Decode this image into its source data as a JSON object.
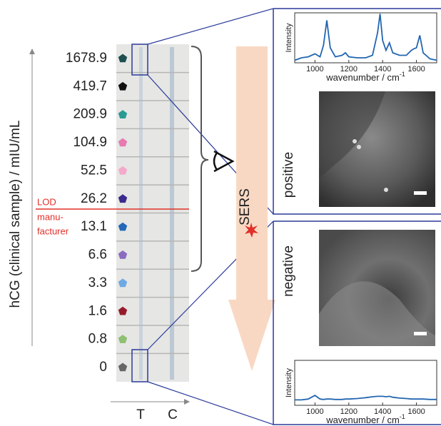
{
  "y_axis_label": "hCG (clinical sample) / mIU/mL",
  "rows": [
    {
      "label": "1678.9",
      "color": "#1d4f4f"
    },
    {
      "label": "419.7",
      "color": "#111111"
    },
    {
      "label": "209.9",
      "color": "#2a9a94"
    },
    {
      "label": "104.9",
      "color": "#e67bb0"
    },
    {
      "label": "52.5",
      "color": "#f3aacb"
    },
    {
      "label": "26.2",
      "color": "#3b2b8c"
    },
    {
      "label": "13.1",
      "color": "#2468b8"
    },
    {
      "label": "6.6",
      "color": "#8a6cc0"
    },
    {
      "label": "3.3",
      "color": "#6fa9e2"
    },
    {
      "label": "1.6",
      "color": "#951b2b"
    },
    {
      "label": "0.8",
      "color": "#8fbf72"
    },
    {
      "label": "0",
      "color": "#666666"
    }
  ],
  "lod": {
    "line1": "LOD",
    "line2": "manu-",
    "line3": "facturer"
  },
  "strip_labels": {
    "test": "T",
    "control": "C"
  },
  "sers_label": "SERS",
  "panels": [
    {
      "label": "positive",
      "spectrum": {
        "y_label": "Intensity",
        "x_label": "wavenumber / cm",
        "x_label_sup": "-1",
        "xlim": [
          880,
          1720
        ],
        "ylim": [
          0,
          1
        ],
        "xticks": [
          1000,
          1200,
          1400,
          1600
        ],
        "color": "#2266b0",
        "x": [
          880,
          920,
          960,
          1000,
          1030,
          1050,
          1070,
          1090,
          1120,
          1160,
          1180,
          1200,
          1250,
          1300,
          1340,
          1370,
          1385,
          1400,
          1420,
          1440,
          1460,
          1500,
          1540,
          1570,
          1585,
          1600,
          1620,
          1640,
          1680,
          1720
        ],
        "values": [
          0.05,
          0.1,
          0.12,
          0.18,
          0.12,
          0.35,
          0.85,
          0.3,
          0.12,
          0.15,
          0.2,
          0.12,
          0.1,
          0.1,
          0.15,
          0.6,
          0.98,
          0.45,
          0.25,
          0.4,
          0.2,
          0.15,
          0.15,
          0.25,
          0.28,
          0.3,
          0.55,
          0.2,
          0.08,
          0.05
        ]
      }
    },
    {
      "label": "negative",
      "spectrum": {
        "y_label": "Intensity",
        "x_label": "wavenumber / cm",
        "x_label_sup": "-1",
        "xlim": [
          880,
          1720
        ],
        "ylim": [
          0,
          1
        ],
        "xticks": [
          1000,
          1200,
          1400,
          1600
        ],
        "color": "#2266b0",
        "x": [
          880,
          920,
          960,
          1000,
          1030,
          1050,
          1070,
          1090,
          1120,
          1160,
          1180,
          1200,
          1250,
          1300,
          1340,
          1370,
          1385,
          1400,
          1420,
          1440,
          1460,
          1500,
          1540,
          1570,
          1585,
          1600,
          1620,
          1640,
          1680,
          1720
        ],
        "values": [
          0.12,
          0.12,
          0.14,
          0.22,
          0.14,
          0.13,
          0.14,
          0.14,
          0.13,
          0.13,
          0.14,
          0.14,
          0.15,
          0.17,
          0.19,
          0.2,
          0.2,
          0.2,
          0.19,
          0.2,
          0.18,
          0.16,
          0.15,
          0.14,
          0.14,
          0.14,
          0.14,
          0.14,
          0.13,
          0.13
        ]
      }
    }
  ]
}
